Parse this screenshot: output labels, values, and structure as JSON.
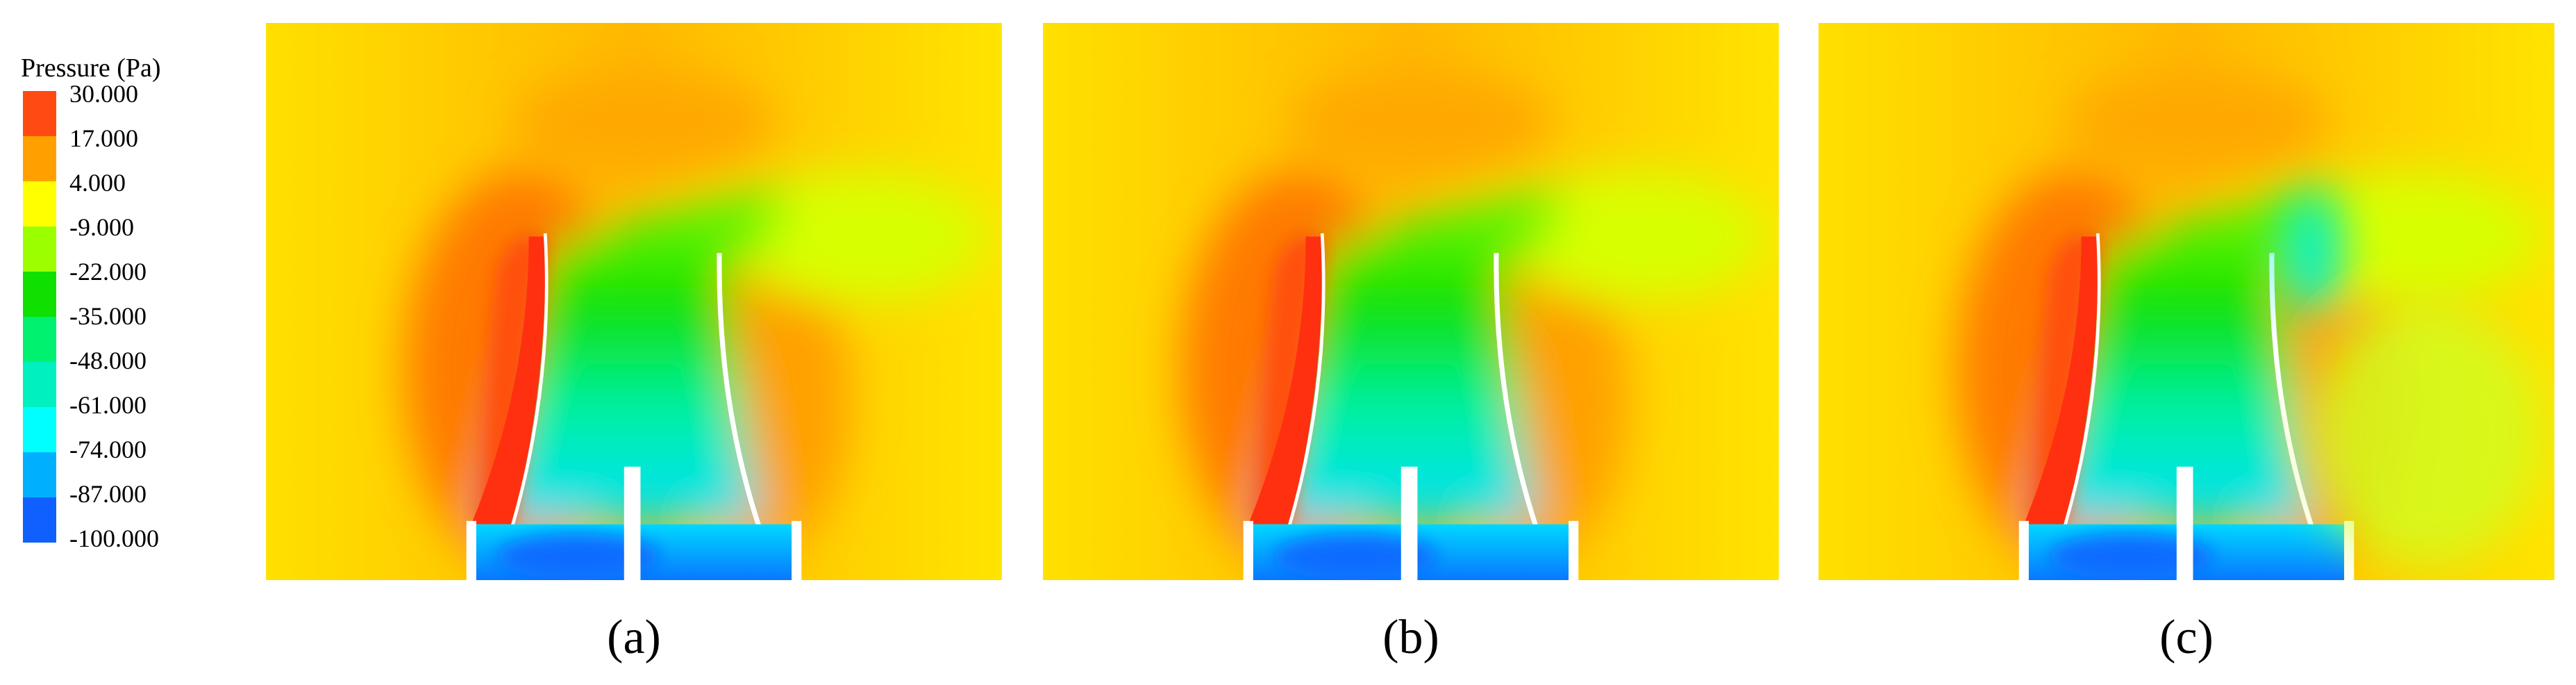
{
  "legend": {
    "title": "Pressure (Pa)",
    "labels": [
      "30.000",
      "17.000",
      "4.000",
      "-9.000",
      "-22.000",
      "-35.000",
      "-48.000",
      "-61.000",
      "-74.000",
      "-87.000",
      "-100.000"
    ]
  },
  "panels": [
    {
      "label": "(a)"
    },
    {
      "label": "(b)"
    },
    {
      "label": "(c)"
    }
  ]
}
